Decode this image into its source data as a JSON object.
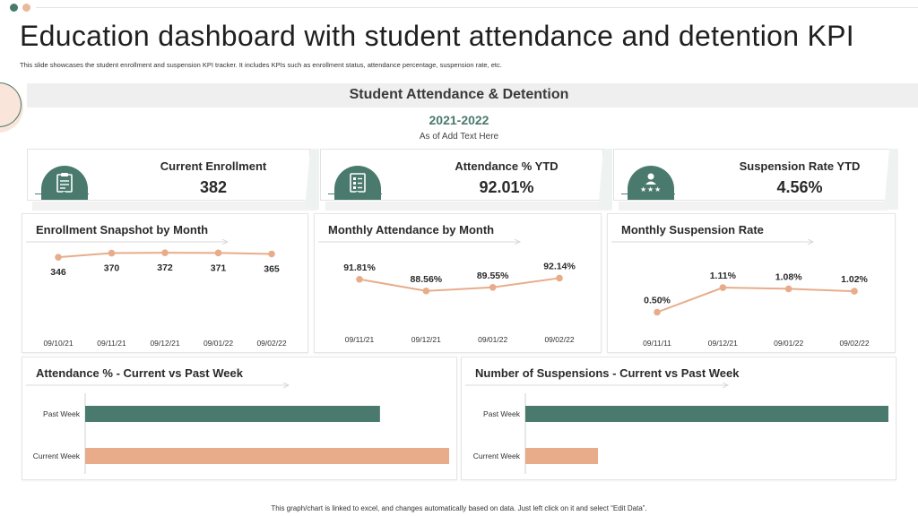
{
  "page": {
    "title": "Education dashboard with student attendance and detention KPI",
    "subtitle": "This slide showcases the student enrollment and suspension KPI tracker. It includes KPIs  such as enrollment status, attendance percentage, suspension rate, etc.",
    "section_title": "Student Attendance & Detention",
    "year": "2021-2022",
    "as_of": "As of Add Text Here",
    "footer": "This graph/chart is linked to excel, and changes automatically based on data. Just left click on it and select “Edit Data”."
  },
  "colors": {
    "green": "#4a7a6d",
    "peach": "#e8ac8a",
    "peach_light": "#f9e5d9"
  },
  "kpis": [
    {
      "label": "Current Enrollment",
      "value": "382",
      "icon": "clipboard-icon"
    },
    {
      "label": "Attendance % YTD",
      "value": "92.01%",
      "icon": "checklist-icon"
    },
    {
      "label": "Suspension Rate YTD",
      "value": "4.56%",
      "icon": "user-stars-icon"
    }
  ],
  "chart_data": [
    {
      "type": "line",
      "title": "Enrollment Snapshot by Month",
      "categories": [
        "09/10/21",
        "09/11/21",
        "09/12/21",
        "09/01/22",
        "09/02/22"
      ],
      "values": [
        346,
        370,
        372,
        371,
        365
      ],
      "labels": [
        "346",
        "370",
        "372",
        "371",
        "365"
      ],
      "ylim": [
        0,
        440
      ]
    },
    {
      "type": "line",
      "title": "Monthly Attendance by Month",
      "categories": [
        "09/11/21",
        "09/12/21",
        "09/01/22",
        "09/02/22"
      ],
      "values": [
        91.81,
        88.56,
        89.55,
        92.14
      ],
      "labels": [
        "91.81%",
        "88.56%",
        "89.55%",
        "92.14%"
      ],
      "ylim": [
        80,
        100
      ]
    },
    {
      "type": "line",
      "title": "Monthly  Suspension Rate",
      "categories": [
        "09/11/11",
        "09/12/21",
        "09/01/22",
        "09/02/22"
      ],
      "values": [
        0.5,
        1.11,
        1.08,
        1.02
      ],
      "labels": [
        "0.50%",
        "1.11%",
        "1.08%",
        "1.02%"
      ],
      "ylim": [
        0,
        2
      ]
    },
    {
      "type": "bar",
      "orientation": "horizontal",
      "title": "Attendance % - Current vs Past Week",
      "categories": [
        "Past Week",
        "Current Week"
      ],
      "values": [
        81,
        100
      ],
      "xlim": [
        0,
        100
      ]
    },
    {
      "type": "bar",
      "orientation": "horizontal",
      "title": "Number of Suspensions - Current vs Past Week",
      "categories": [
        "Past Week",
        "Current Week"
      ],
      "values": [
        10,
        2
      ],
      "xlim": [
        0,
        10
      ]
    }
  ]
}
